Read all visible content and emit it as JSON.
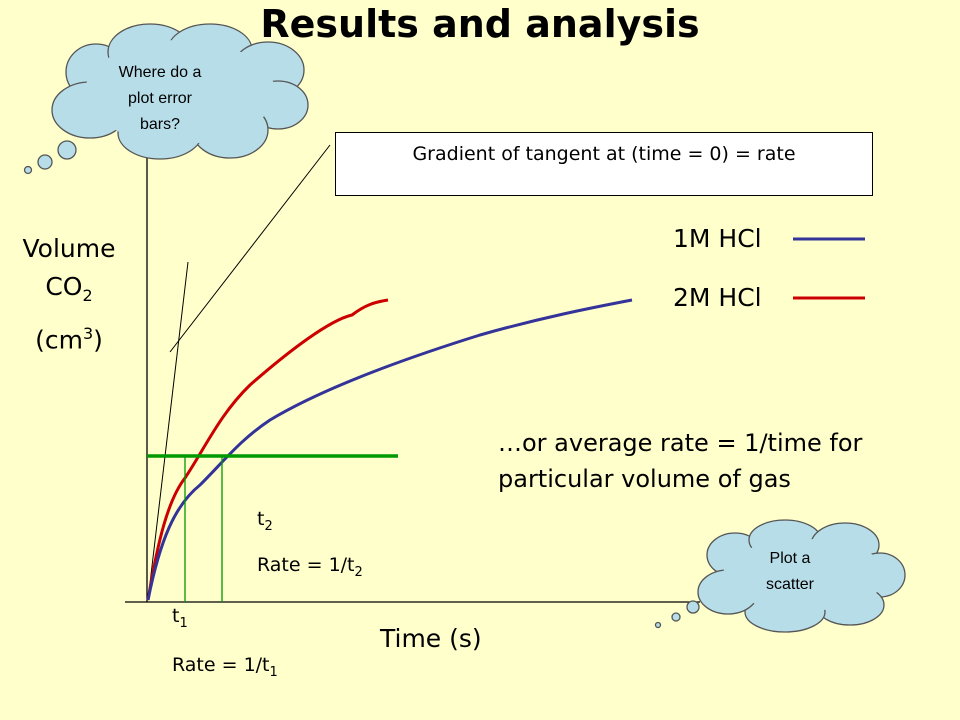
{
  "title": "Results and analysis",
  "y_label": {
    "main": "Volume",
    "co_prefix": "CO",
    "co_sub": "2",
    "unit_pre": "(cm",
    "unit_sup": "3",
    "unit_post": ")"
  },
  "x_label": "Time (s)",
  "gradient_box": "Gradient of tangent at (time = 0) = rate",
  "legend": [
    {
      "label": "1M HCl",
      "color": "#333399"
    },
    {
      "label": "2M HCl",
      "color": "#cc0000"
    }
  ],
  "average_note": {
    "line1": "…or average rate = 1/time for",
    "line2": "particular volume of gas"
  },
  "t2": {
    "t": "t",
    "t_sub": "2",
    "rate": "Rate = 1/t",
    "rate_sub": "2"
  },
  "t1": {
    "t": "t",
    "t_sub": "1",
    "rate": "Rate = 1/t",
    "rate_sub": "1"
  },
  "bubble_top": {
    "line1": "Where do a",
    "line2": "plot error",
    "line3": "bars?"
  },
  "bubble_bottom": {
    "line1": "Plot a",
    "line2": "scatter"
  },
  "colors": {
    "background": "#ffffcc",
    "cloud": "#b7dde8",
    "green_line": "#009900",
    "red": "#cc0000",
    "blue": "#333399"
  }
}
